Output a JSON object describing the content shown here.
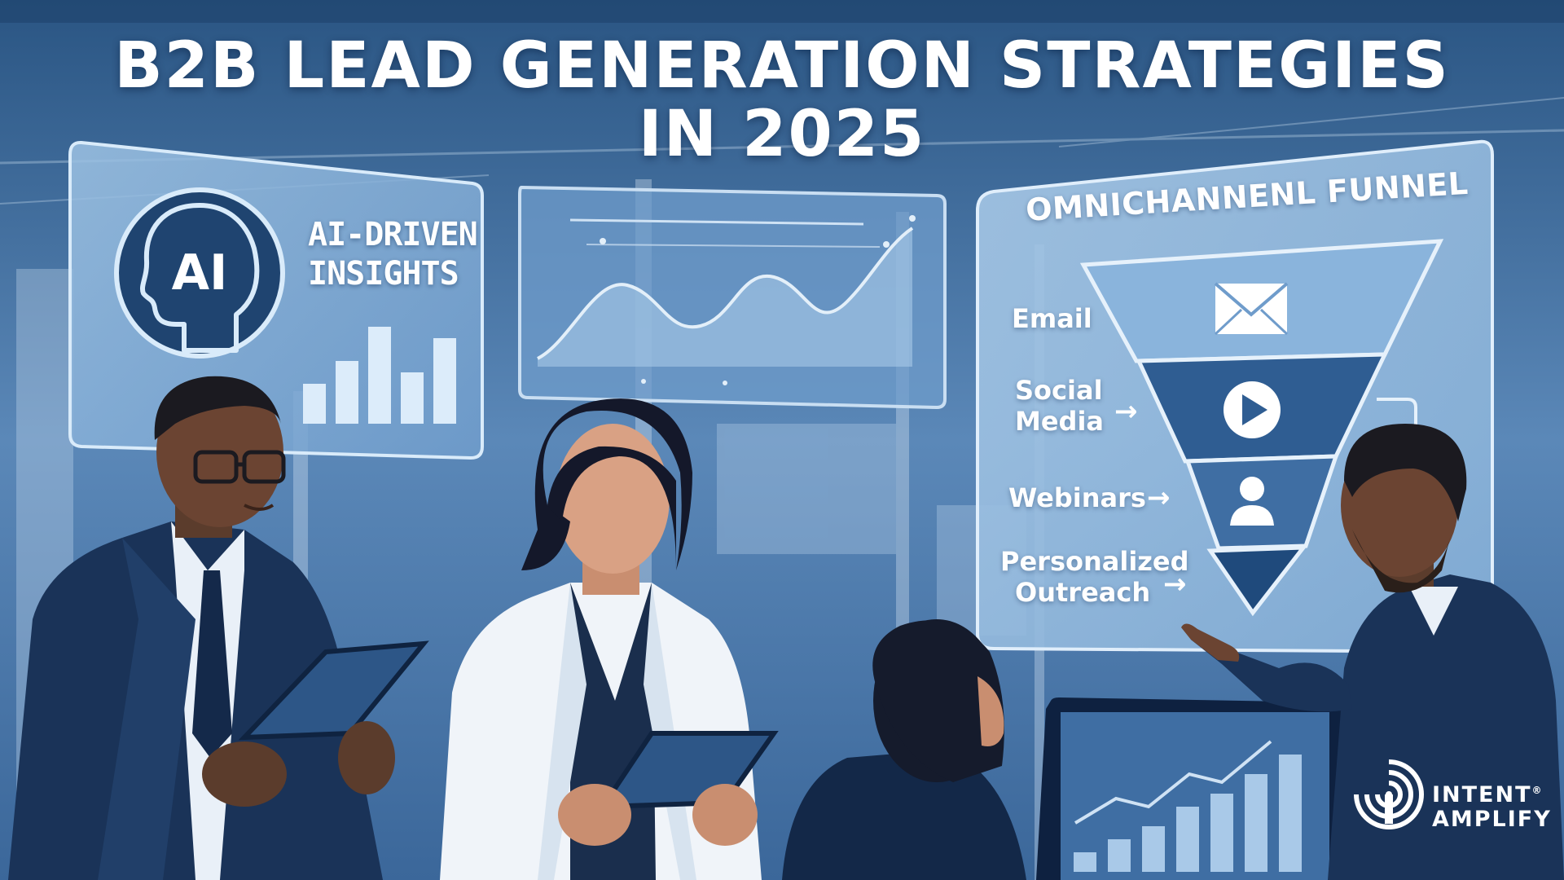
{
  "title": {
    "line1": "B2B LEAD GENERATION STRATEGIES",
    "line2": "IN 2025"
  },
  "ai_panel": {
    "head_text": "AI",
    "label_line1": "AI-DRIVEN",
    "label_line2": "INSIGHTS",
    "bar_values": [
      0.35,
      0.55,
      0.85,
      0.45,
      0.75
    ]
  },
  "funnel_panel": {
    "title": "OMNICHANNENL FUNNEL",
    "channels": [
      {
        "line1": "Email",
        "line2": "",
        "icon": "envelope-icon"
      },
      {
        "line1": "Social",
        "line2": "Media",
        "icon": "play-icon"
      },
      {
        "line1": "Webinars",
        "line2": "",
        "icon": "person-icon"
      },
      {
        "line1": "Personalized",
        "line2": "Outreach",
        "icon": ""
      }
    ],
    "arrow_glyph": "→"
  },
  "logo": {
    "line1": "INTENT",
    "trademark": "®",
    "line2": "AMPLIFY",
    "icon": "concentric-target-icon"
  },
  "colors": {
    "background": "#2b5685",
    "panel": "#8fb6da",
    "navy": "#1a3358",
    "accent": "#5d8cc1",
    "text": "#ffffff"
  }
}
